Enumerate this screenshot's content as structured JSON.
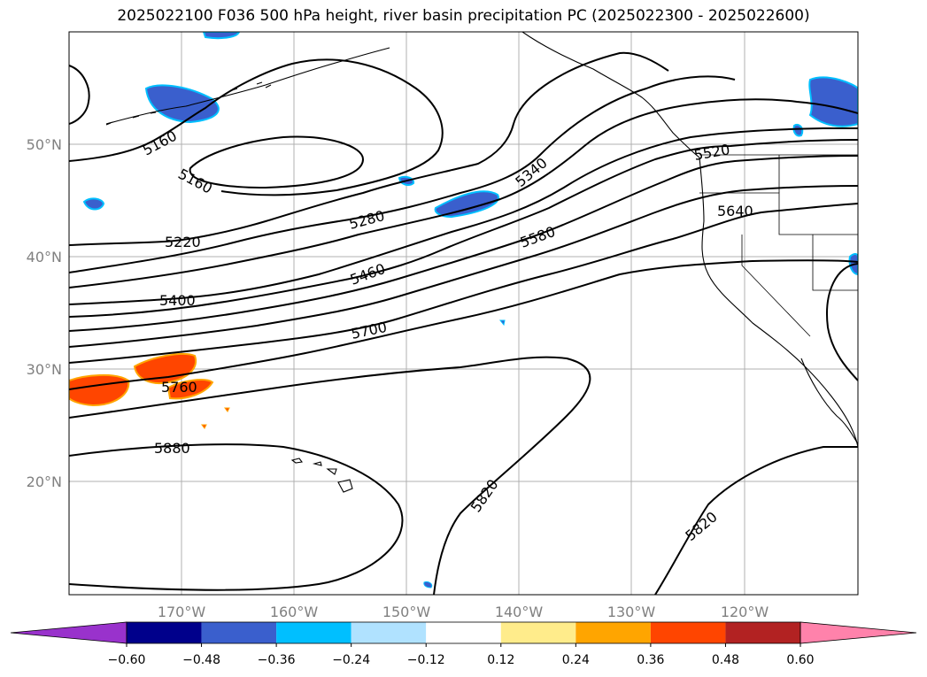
{
  "title": "2025022100 F036 500 hPa height, river basin precipitation PC (2025022300 - 2025022600)",
  "map": {
    "lat_labels": [
      "50°N",
      "40°N",
      "30°N",
      "20°N"
    ],
    "lon_labels": [
      "170°W",
      "160°W",
      "150°W",
      "140°W",
      "130°W",
      "120°W"
    ],
    "contour_labels": [
      "5160",
      "5160",
      "5220",
      "5280",
      "5340",
      "5400",
      "5460",
      "5580",
      "5640",
      "5700",
      "5760",
      "5880",
      "5820",
      "5820",
      "5520"
    ],
    "contour_color": "#000000",
    "grid_color": "#b0b0b0"
  },
  "colorbar": {
    "ticks": [
      "−0.60",
      "−0.48",
      "−0.36",
      "−0.24",
      "−0.12",
      "0.12",
      "0.24",
      "0.36",
      "0.48",
      "0.60"
    ],
    "colors": [
      "#9932CC",
      "#00008B",
      "#3A5FCD",
      "#00BFFF",
      "#B0E2FF",
      "#FFFFFF",
      "#FFEC8B",
      "#FFA500",
      "#FF4500",
      "#B22222",
      "#FF82AB"
    ]
  }
}
